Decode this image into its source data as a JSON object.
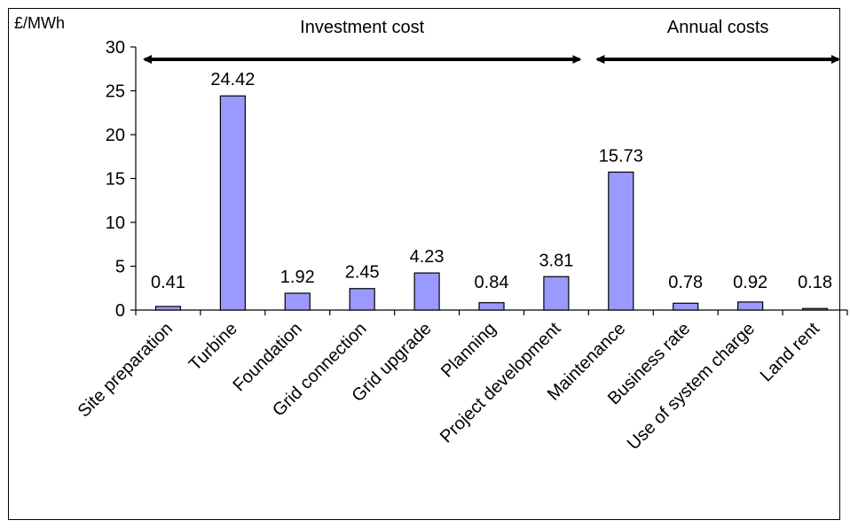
{
  "chart_data": {
    "type": "bar",
    "unit_label": "£/MWh",
    "categories": [
      "Site preparation",
      "Turbine",
      "Foundation",
      "Grid connection",
      "Grid upgrade",
      "Planning",
      "Project development",
      "Maintenance",
      "Business rate",
      "Use of system charge",
      "Land rent"
    ],
    "values": [
      0.41,
      24.42,
      1.92,
      2.45,
      4.23,
      0.84,
      3.81,
      15.73,
      0.78,
      0.92,
      0.18
    ],
    "data_labels": [
      "0.41",
      "24.42",
      "1.92",
      "2.45",
      "4.23",
      "0.84",
      "3.81",
      "15.73",
      "0.78",
      "0.92",
      "0.18"
    ],
    "ylim": [
      0,
      30
    ],
    "yticks": [
      0,
      5,
      10,
      15,
      20,
      25,
      30
    ],
    "ytick_labels": [
      "0",
      "5",
      "10",
      "15",
      "20",
      "25",
      "30"
    ],
    "spans": [
      {
        "label": "Investment cost",
        "from": "Site preparation",
        "to": "Project development"
      },
      {
        "label": "Annual costs",
        "from": "Maintenance",
        "to": "Land rent"
      }
    ],
    "bar_color": "#9999ff",
    "bar_edge_color": "#000000",
    "grid": false,
    "legend": "none"
  }
}
